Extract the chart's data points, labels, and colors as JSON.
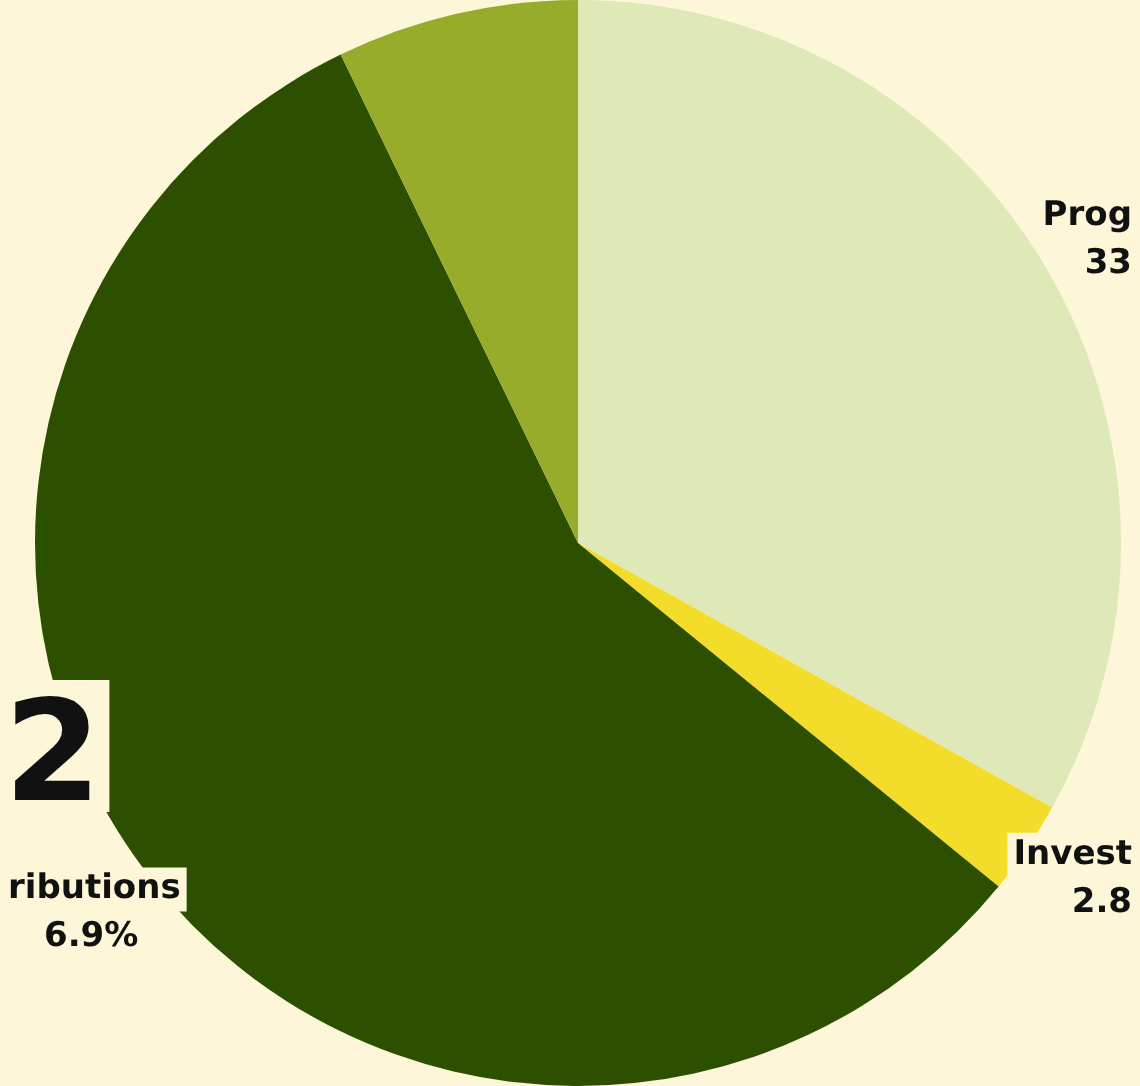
{
  "chart_data": {
    "type": "pie",
    "categories": [
      "Prog",
      "Invest",
      "ributions",
      null
    ],
    "values": [
      33.1,
      2.8,
      56.9,
      7.2
    ],
    "colors": [
      "#dfe9b8",
      "#f4dc2a",
      "#2d5000",
      "#97ac2a"
    ],
    "annotations": [
      {
        "text": "33",
        "x": "Prog"
      },
      {
        "text": "2.8",
        "x": "Invest"
      },
      {
        "text": "6.9%",
        "x": "ributions"
      },
      "2"
    ],
    "legend": false
  }
}
